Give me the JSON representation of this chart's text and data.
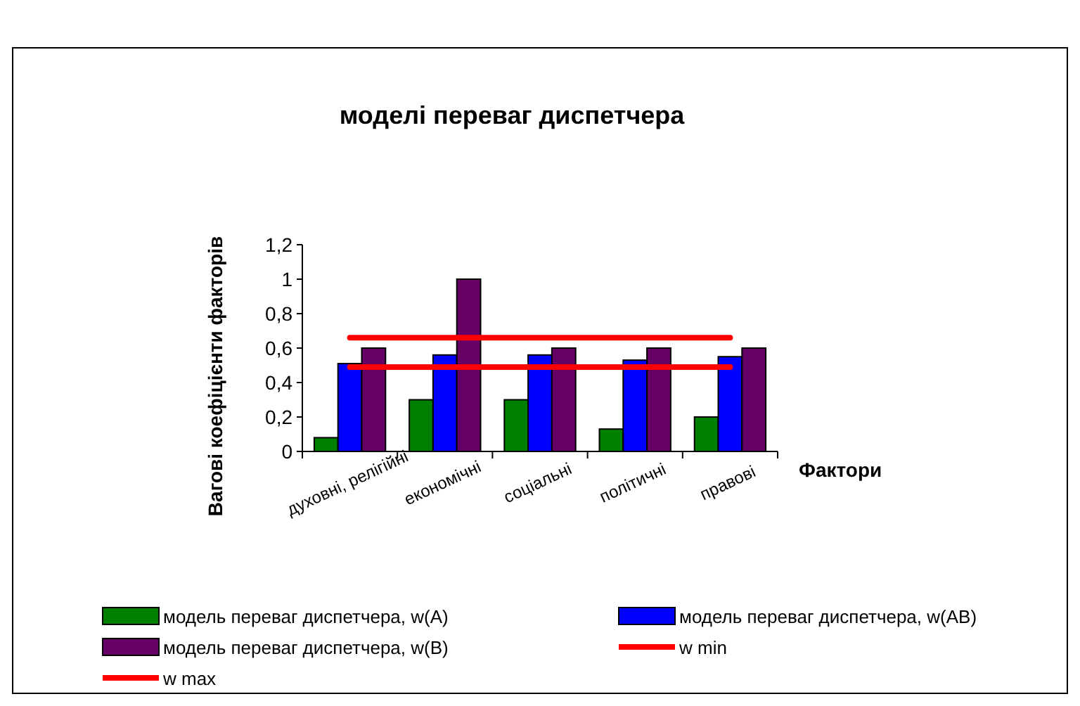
{
  "chart_data": {
    "type": "bar",
    "title": "моделі переваг диспетчера",
    "xlabel": "Фактори",
    "ylabel": "Вагові коефіцієнти факторів",
    "categories": [
      "духовні, релігійні",
      "економічні",
      "соціальні",
      "політичні",
      "правові"
    ],
    "series": [
      {
        "name": "модель переваг диспетчера, w(A)",
        "color": "#008000",
        "values": [
          0.08,
          0.3,
          0.3,
          0.13,
          0.2
        ]
      },
      {
        "name": "модель переваг диспетчера, w(AB)",
        "color": "#0000ff",
        "values": [
          0.51,
          0.56,
          0.56,
          0.53,
          0.55
        ]
      },
      {
        "name": "модель переваг диспетчера, w(B)",
        "color": "#660066",
        "values": [
          0.6,
          1,
          0.6,
          0.6,
          0.6
        ]
      },
      {
        "name": "w min",
        "type": "line",
        "color": "#ff0000",
        "values": [
          0.49,
          0.49,
          0.49,
          0.49,
          0.49
        ]
      },
      {
        "name": "w max",
        "type": "line",
        "color": "#ff0000",
        "values": [
          0.66,
          0.66,
          0.66,
          0.66,
          0.66
        ]
      }
    ],
    "ylim": [
      0,
      1.2
    ],
    "yticks": [
      {
        "value": 0,
        "label": "0"
      },
      {
        "value": 0.2,
        "label": "0,2"
      },
      {
        "value": 0.4,
        "label": "0,4"
      },
      {
        "value": 0.6,
        "label": "0,6"
      },
      {
        "value": 0.8,
        "label": "0,8"
      },
      {
        "value": 1,
        "label": "1"
      },
      {
        "value": 1.2,
        "label": "1,2"
      }
    ],
    "legend": "bottom"
  }
}
